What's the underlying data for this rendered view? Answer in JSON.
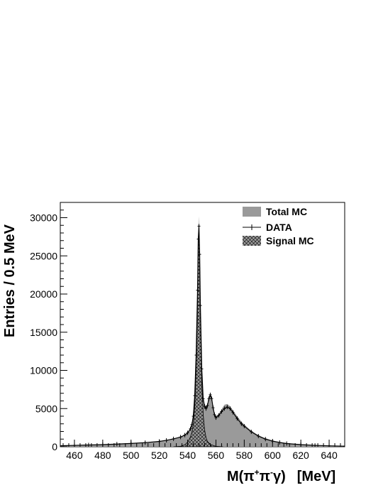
{
  "chart_data": {
    "type": "area",
    "xlabel_prefix": "M(",
    "xlabel_pi1": "π",
    "xlabel_sup1": "+",
    "xlabel_pi2": "π",
    "xlabel_sup2": "-",
    "xlabel_gamma": "γ)",
    "xlabel_unit": "[MeV]",
    "ylabel": "Entries / 0.5 MeV",
    "xlim": [
      450,
      651
    ],
    "ylim": [
      0,
      32000
    ],
    "x_ticks": [
      "460",
      "480",
      "500",
      "520",
      "540",
      "560",
      "580",
      "600",
      "620",
      "640"
    ],
    "x_tick_values": [
      460,
      480,
      500,
      520,
      540,
      560,
      580,
      600,
      620,
      640
    ],
    "y_ticks": [
      "0",
      "5000",
      "10000",
      "15000",
      "20000",
      "25000",
      "30000"
    ],
    "y_tick_values": [
      0,
      5000,
      10000,
      15000,
      20000,
      25000,
      30000
    ],
    "legend_position": "top-right",
    "legend": [
      {
        "label": "Total MC",
        "style": "gray-fill"
      },
      {
        "label": "DATA",
        "style": "marker-line"
      },
      {
        "label": "Signal MC",
        "style": "hatched"
      }
    ],
    "colors": {
      "total_mc": "#9a9a9a",
      "data": "#000000",
      "signal_hatch": "#000000"
    },
    "series": [
      {
        "name": "Total MC",
        "x": [
          450,
          460,
          470,
          480,
          490,
          500,
          510,
          520,
          525,
          530,
          535,
          538,
          540,
          542,
          543,
          544,
          545,
          546,
          547,
          547.5,
          548,
          548.5,
          549,
          550,
          551,
          552,
          553,
          554,
          555,
          556,
          557,
          558,
          559,
          560,
          562,
          564,
          566,
          568,
          570,
          572,
          575,
          578,
          580,
          585,
          590,
          595,
          600,
          605,
          610,
          620,
          630,
          640,
          651
        ],
        "values": [
          150,
          200,
          250,
          300,
          370,
          450,
          560,
          730,
          870,
          1060,
          1300,
          1550,
          1850,
          2400,
          3000,
          4200,
          7000,
          12500,
          21000,
          28000,
          30200,
          26000,
          19000,
          10500,
          6500,
          5500,
          5200,
          5600,
          6500,
          6900,
          6500,
          5300,
          4400,
          4000,
          4300,
          4900,
          5500,
          5600,
          5300,
          4800,
          4000,
          3300,
          2900,
          2100,
          1500,
          1100,
          800,
          620,
          470,
          320,
          210,
          140,
          80
        ]
      },
      {
        "name": "DATA",
        "x": [
          450,
          460,
          470,
          480,
          490,
          500,
          510,
          520,
          525,
          530,
          535,
          538,
          540,
          542,
          543,
          544,
          545,
          546,
          547,
          547.5,
          548,
          548.5,
          549,
          550,
          551,
          552,
          553,
          554,
          555,
          556,
          557,
          558,
          559,
          560,
          562,
          564,
          566,
          568,
          570,
          572,
          575,
          578,
          580,
          585,
          590,
          595,
          600,
          605,
          610,
          620,
          630,
          640,
          651
        ],
        "values": [
          130,
          180,
          230,
          280,
          350,
          430,
          540,
          700,
          840,
          1030,
          1270,
          1520,
          1820,
          2350,
          2900,
          4000,
          6700,
          12000,
          20500,
          27200,
          28900,
          25200,
          18500,
          10200,
          6300,
          5300,
          5000,
          5400,
          6300,
          6800,
          6300,
          5100,
          4200,
          3800,
          4100,
          4600,
          5000,
          5200,
          5000,
          4500,
          3700,
          3000,
          2700,
          1950,
          1400,
          1000,
          740,
          560,
          420,
          280,
          180,
          120,
          70
        ]
      },
      {
        "name": "Signal MC",
        "x": [
          530,
          535,
          538,
          540,
          541,
          542,
          543,
          544,
          545,
          546,
          547,
          547.5,
          548,
          548.5,
          549,
          550,
          551,
          552,
          553,
          554,
          556,
          560,
          565
        ],
        "values": [
          0,
          60,
          250,
          600,
          900,
          1300,
          1900,
          2900,
          5200,
          10000,
          18500,
          25500,
          28500,
          24500,
          17000,
          8500,
          4200,
          2200,
          1200,
          700,
          300,
          50,
          0
        ]
      }
    ]
  }
}
